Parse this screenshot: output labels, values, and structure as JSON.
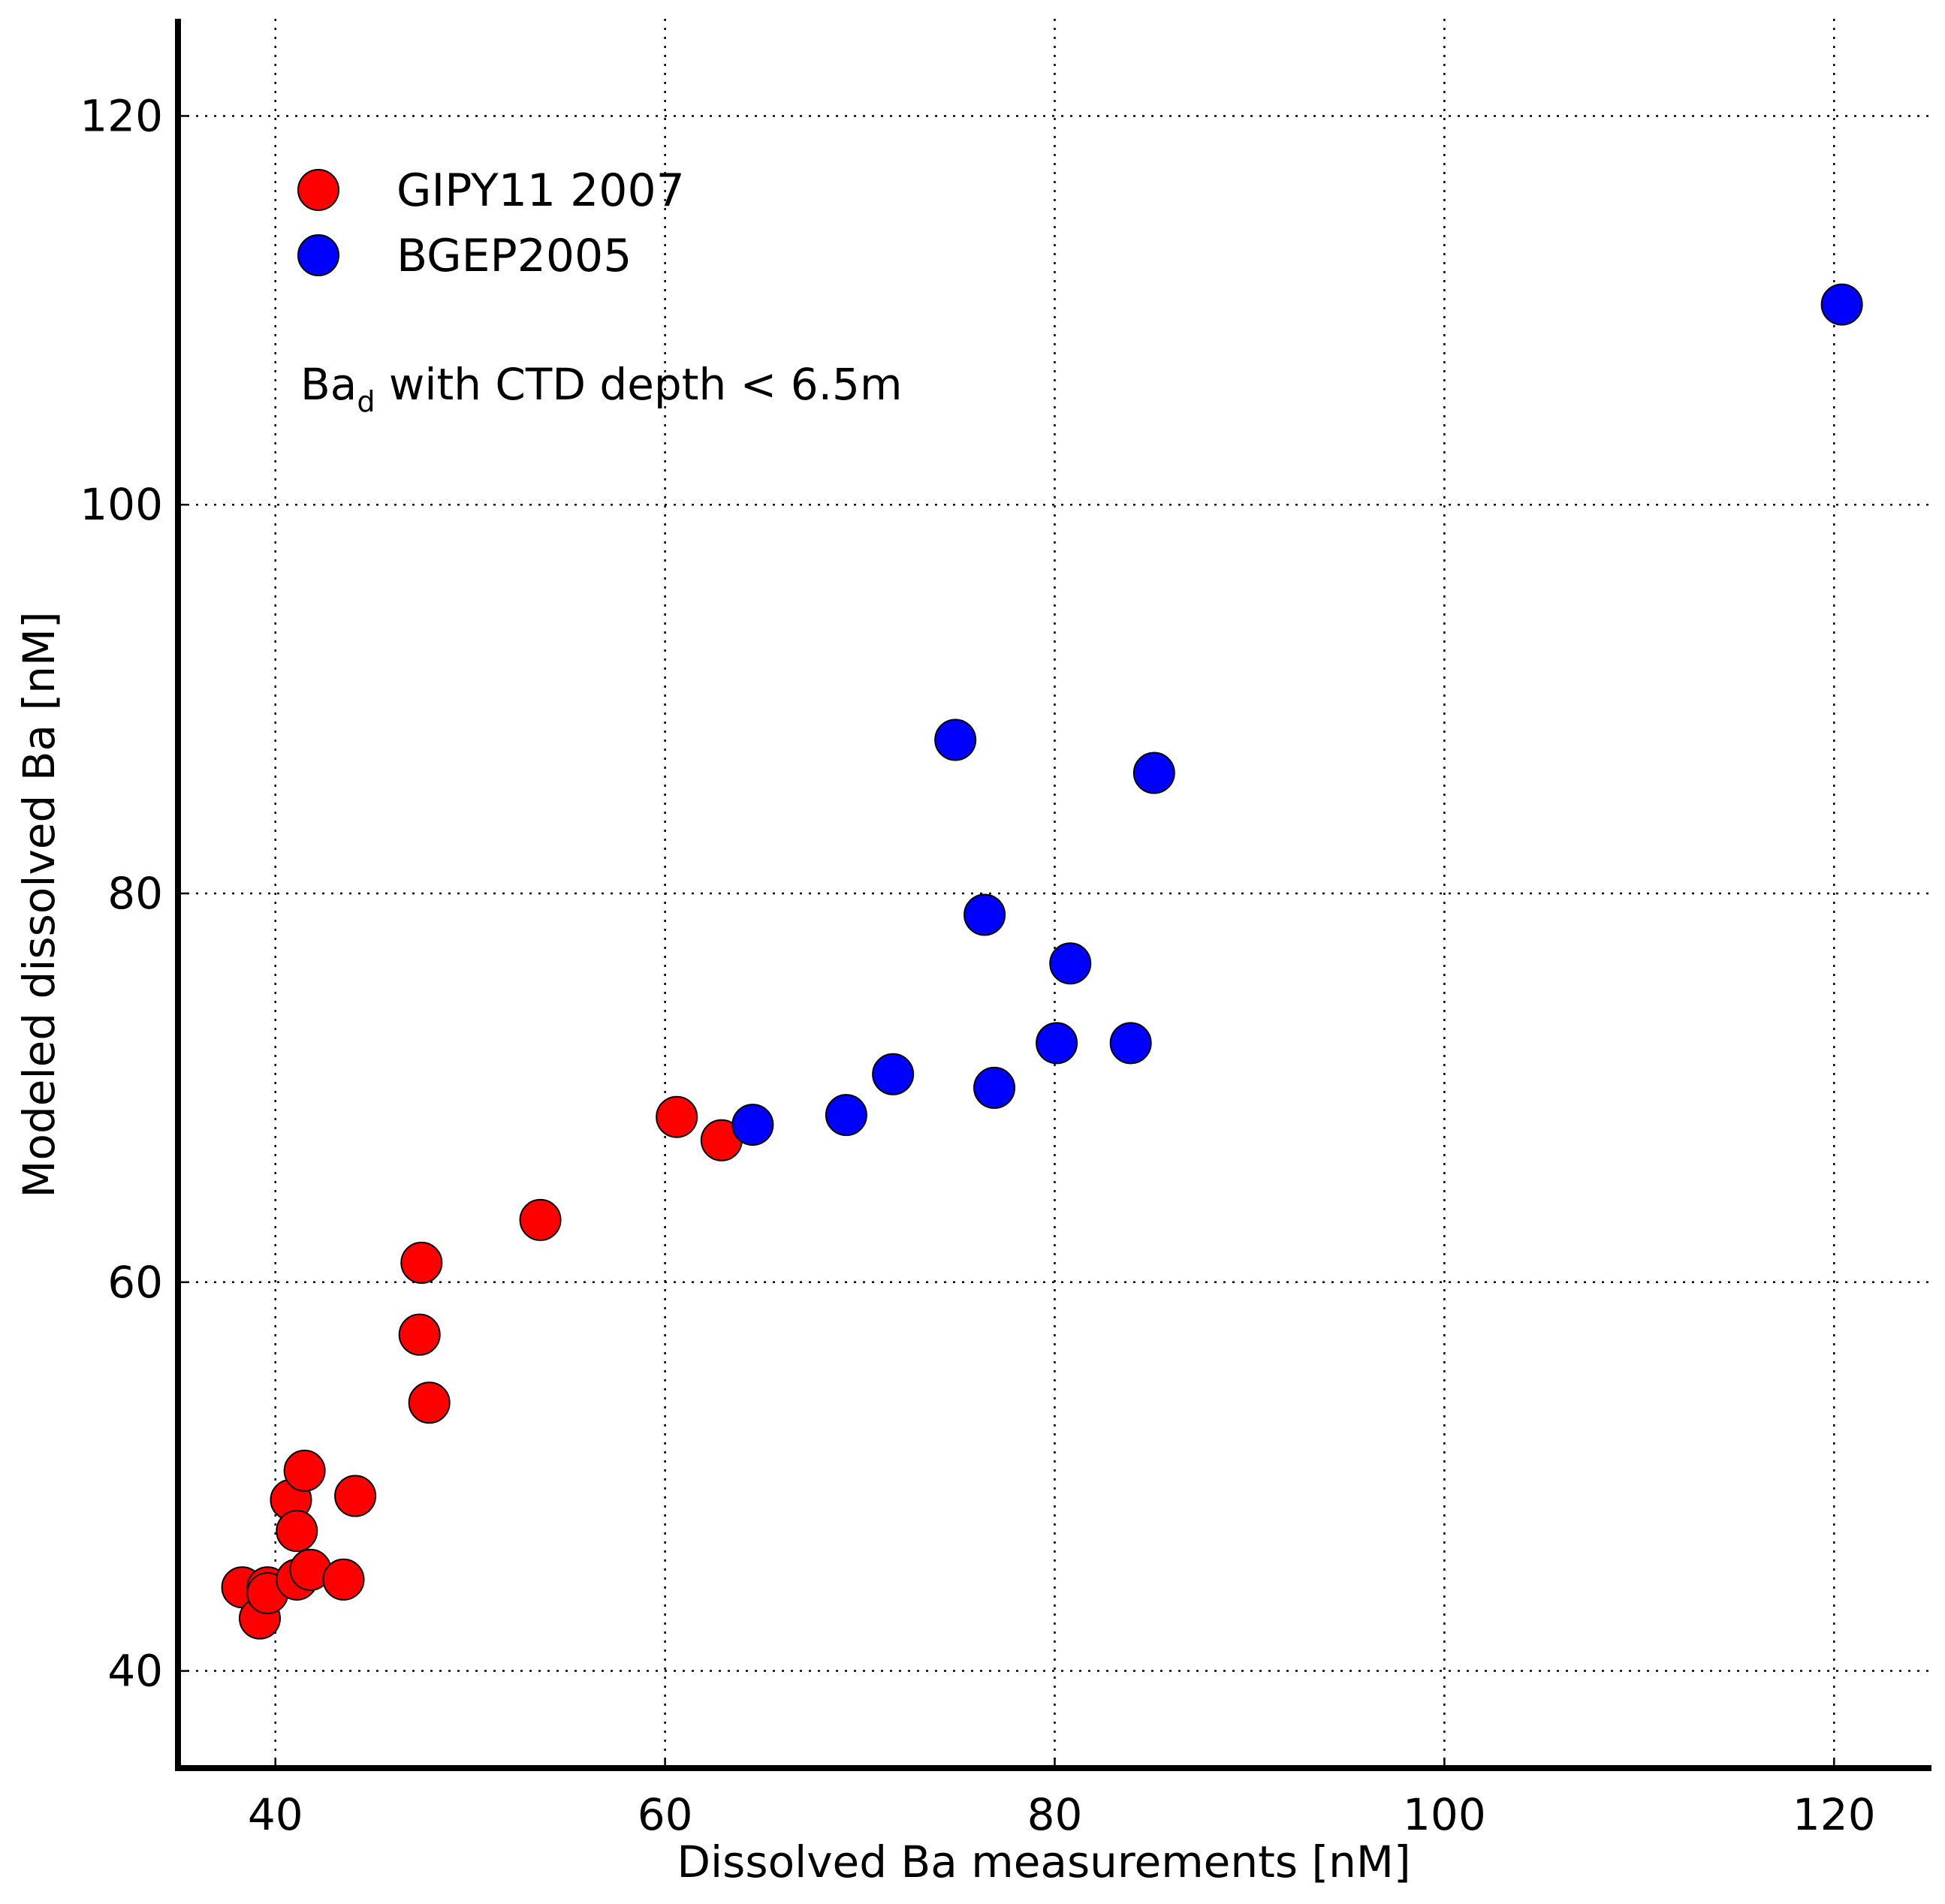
{
  "chart_data": {
    "type": "scatter",
    "title": "",
    "xlabel": "Dissolved Ba measurements [nM]",
    "ylabel": "Modeled dissolved Ba [nM]",
    "xlim": [
      35,
      125
    ],
    "ylim": [
      35,
      125
    ],
    "xticks": [
      40,
      60,
      80,
      100,
      120
    ],
    "yticks": [
      40,
      60,
      80,
      100,
      120
    ],
    "xtick_labels": [
      "40",
      "60",
      "80",
      "100",
      "120"
    ],
    "ytick_labels": [
      "40",
      "60",
      "80",
      "100",
      "120"
    ],
    "grid": true,
    "legend_position": "top-left",
    "annotation": {
      "base": "Ba",
      "subscript": "d",
      "text": " with CTD depth < 6.5m"
    },
    "series": [
      {
        "name": "GIPY11 2007",
        "color": "#ff0000",
        "points": [
          [
            38.3,
            44.3
          ],
          [
            39.2,
            42.7
          ],
          [
            39.6,
            44.3
          ],
          [
            39.6,
            44.0
          ],
          [
            40.8,
            48.8
          ],
          [
            41.1,
            47.2
          ],
          [
            41.1,
            44.7
          ],
          [
            41.5,
            50.3
          ],
          [
            41.8,
            45.2
          ],
          [
            43.5,
            44.7
          ],
          [
            44.1,
            49.0
          ],
          [
            47.4,
            57.3
          ],
          [
            47.5,
            61.0
          ],
          [
            47.9,
            53.8
          ],
          [
            53.6,
            63.2
          ],
          [
            60.6,
            68.5
          ],
          [
            62.9,
            67.3
          ]
        ]
      },
      {
        "name": "BGEP2005",
        "color": "#0000ff",
        "points": [
          [
            64.5,
            68.1
          ],
          [
            69.3,
            68.6
          ],
          [
            71.7,
            70.7
          ],
          [
            74.9,
            87.9
          ],
          [
            76.4,
            78.9
          ],
          [
            76.9,
            70.0
          ],
          [
            80.1,
            72.3
          ],
          [
            80.8,
            76.4
          ],
          [
            83.9,
            72.3
          ],
          [
            85.1,
            86.2
          ],
          [
            120.4,
            110.3
          ]
        ]
      }
    ]
  }
}
